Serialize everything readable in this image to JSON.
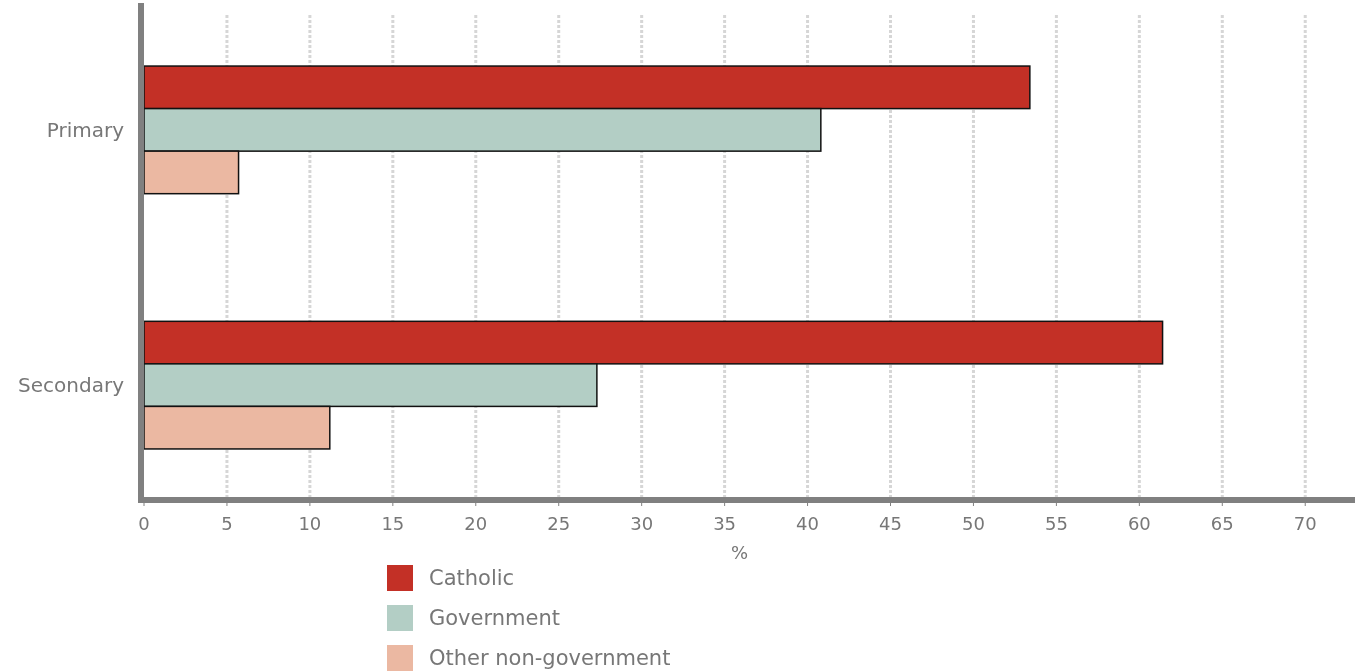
{
  "chart_data": {
    "type": "bar",
    "orientation": "horizontal",
    "xlabel": "%",
    "categories": [
      "Primary",
      "Secondary"
    ],
    "series": [
      {
        "name": "Catholic",
        "color": "#c33026",
        "values": [
          53.4,
          61.4
        ]
      },
      {
        "name": "Government",
        "color": "#b3cec5",
        "values": [
          40.8,
          27.3
        ]
      },
      {
        "name": "Other non-government",
        "color": "#ebb8a2",
        "values": [
          5.7,
          11.2
        ]
      }
    ],
    "xlim": [
      0,
      73
    ],
    "xticks": [
      0,
      5,
      10,
      15,
      20,
      25,
      30,
      35,
      40,
      45,
      50,
      55,
      60,
      65,
      70
    ],
    "grid": "x",
    "legend": "bottom"
  }
}
